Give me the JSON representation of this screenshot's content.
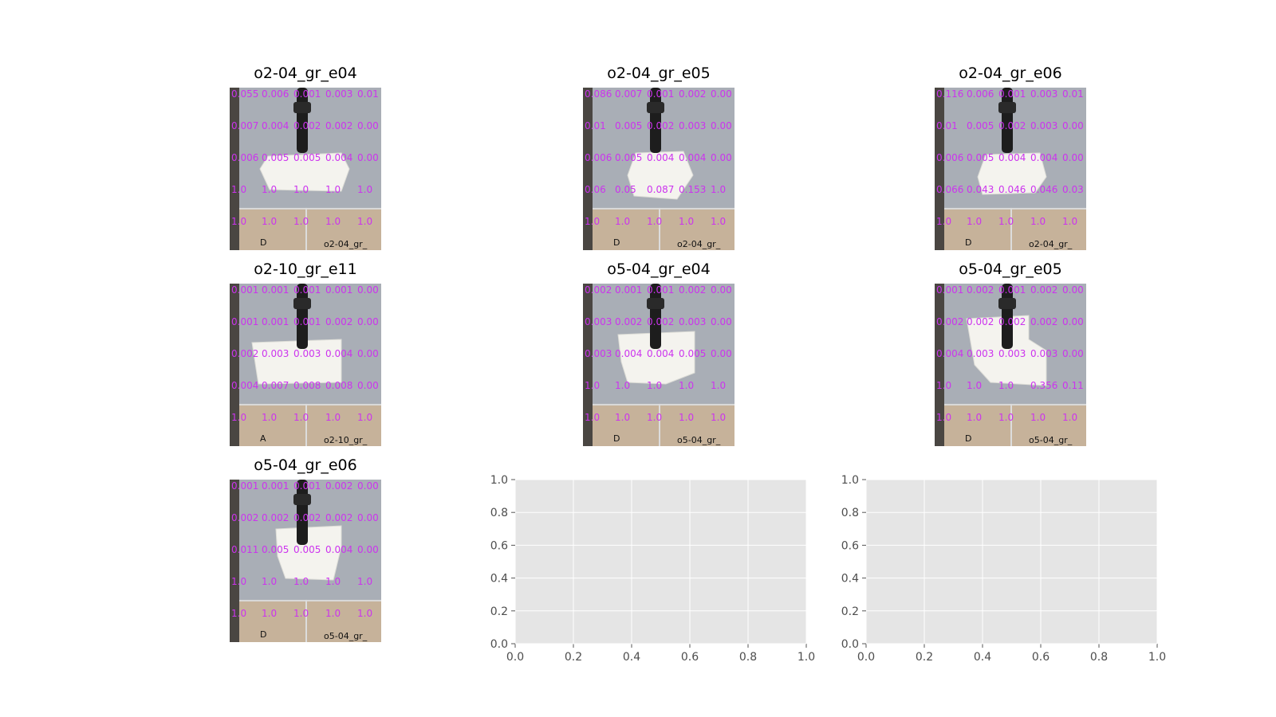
{
  "figure": {
    "panels": [
      {
        "title": "o2-04_gr_e04",
        "grid_rows": [
          [
            "0.055",
            "0.006",
            "0.001",
            "0.003",
            "0.01"
          ],
          [
            "0.007",
            "0.004",
            "0.002",
            "0.002",
            "0.00"
          ],
          [
            "0.006",
            "0.005",
            "0.005",
            "0.004",
            "0.00"
          ],
          [
            "1.0",
            "1.0",
            "1.0",
            "1.0",
            "1.0"
          ],
          [
            "1.0",
            "1.0",
            "1.0",
            "1.0",
            "1.0"
          ]
        ],
        "corner_letter": "D",
        "corner_label": "o2-04_gr_"
      },
      {
        "title": "o2-04_gr_e05",
        "grid_rows": [
          [
            "0.086",
            "0.007",
            "0.001",
            "0.002",
            "0.00"
          ],
          [
            "0.01",
            "0.005",
            "0.002",
            "0.003",
            "0.00"
          ],
          [
            "0.006",
            "0.005",
            "0.004",
            "0.004",
            "0.00"
          ],
          [
            "0.06",
            "0.05",
            "0.087",
            "0.153",
            "1.0"
          ],
          [
            "1.0",
            "1.0",
            "1.0",
            "1.0",
            "1.0"
          ]
        ],
        "corner_letter": "D",
        "corner_label": "o2-04_gr_"
      },
      {
        "title": "o2-04_gr_e06",
        "grid_rows": [
          [
            "0.116",
            "0.006",
            "0.001",
            "0.003",
            "0.01"
          ],
          [
            "0.01",
            "0.005",
            "0.002",
            "0.003",
            "0.00"
          ],
          [
            "0.006",
            "0.005",
            "0.004",
            "0.004",
            "0.00"
          ],
          [
            "0.066",
            "0.043",
            "0.046",
            "0.046",
            "0.03"
          ],
          [
            "1.0",
            "1.0",
            "1.0",
            "1.0",
            "1.0"
          ]
        ],
        "corner_letter": "D",
        "corner_label": "o2-04_gr_"
      },
      {
        "title": "o2-10_gr_e11",
        "grid_rows": [
          [
            "0.001",
            "0.001",
            "0.001",
            "0.001",
            "0.00"
          ],
          [
            "0.001",
            "0.001",
            "0.001",
            "0.002",
            "0.00"
          ],
          [
            "0.002",
            "0.003",
            "0.003",
            "0.004",
            "0.00"
          ],
          [
            "0.004",
            "0.007",
            "0.008",
            "0.008",
            "0.00"
          ],
          [
            "1.0",
            "1.0",
            "1.0",
            "1.0",
            "1.0"
          ]
        ],
        "corner_letter": "A",
        "corner_label": "o2-10_gr_"
      },
      {
        "title": "o5-04_gr_e04",
        "grid_rows": [
          [
            "0.002",
            "0.001",
            "0.001",
            "0.002",
            "0.00"
          ],
          [
            "0.003",
            "0.002",
            "0.002",
            "0.003",
            "0.00"
          ],
          [
            "0.003",
            "0.004",
            "0.004",
            "0.005",
            "0.00"
          ],
          [
            "1.0",
            "1.0",
            "1.0",
            "1.0",
            "1.0"
          ],
          [
            "1.0",
            "1.0",
            "1.0",
            "1.0",
            "1.0"
          ]
        ],
        "corner_letter": "D",
        "corner_label": "o5-04_gr_"
      },
      {
        "title": "o5-04_gr_e05",
        "grid_rows": [
          [
            "0.001",
            "0.002",
            "0.001",
            "0.002",
            "0.00"
          ],
          [
            "0.002",
            "0.002",
            "0.002",
            "0.002",
            "0.00"
          ],
          [
            "0.004",
            "0.003",
            "0.003",
            "0.003",
            "0.00"
          ],
          [
            "1.0",
            "1.0",
            "1.0",
            "0.356",
            "0.11"
          ],
          [
            "1.0",
            "1.0",
            "1.0",
            "1.0",
            "1.0"
          ]
        ],
        "corner_letter": "D",
        "corner_label": "o5-04_gr_"
      },
      {
        "title": "o5-04_gr_e06",
        "grid_rows": [
          [
            "0.001",
            "0.001",
            "0.001",
            "0.002",
            "0.00"
          ],
          [
            "0.002",
            "0.002",
            "0.002",
            "0.002",
            "0.00"
          ],
          [
            "0.011",
            "0.005",
            "0.005",
            "0.004",
            "0.00"
          ],
          [
            "1.0",
            "1.0",
            "1.0",
            "1.0",
            "1.0"
          ],
          [
            "1.0",
            "1.0",
            "1.0",
            "1.0",
            "1.0"
          ]
        ],
        "corner_letter": "D",
        "corner_label": "o5-04_gr_"
      }
    ],
    "empty_axes": [
      {
        "xlim": [
          0.0,
          1.0
        ],
        "ylim": [
          0.0,
          1.0
        ],
        "xticks": [
          "0.0",
          "0.2",
          "0.4",
          "0.6",
          "0.8",
          "1.0"
        ],
        "yticks": [
          "0.0",
          "0.2",
          "0.4",
          "0.6",
          "0.8",
          "1.0"
        ]
      },
      {
        "xlim": [
          0.0,
          1.0
        ],
        "ylim": [
          0.0,
          1.0
        ],
        "xticks": [
          "0.0",
          "0.2",
          "0.4",
          "0.6",
          "0.8",
          "1.0"
        ],
        "yticks": [
          "0.0",
          "0.2",
          "0.4",
          "0.6",
          "0.8",
          "1.0"
        ]
      }
    ],
    "colors": {
      "overlay_text": "#cc33ee",
      "axes_background": "#e5e5e5",
      "grid": "#ffffff",
      "tick_text": "#4d4d4d"
    }
  },
  "chart_data": [
    {
      "type": "table",
      "title": "o2-04_gr_e04",
      "rows": [
        [
          "0.055",
          "0.006",
          "0.001",
          "0.003",
          "0.01"
        ],
        [
          "0.007",
          "0.004",
          "0.002",
          "0.002",
          "0.00"
        ],
        [
          "0.006",
          "0.005",
          "0.005",
          "0.004",
          "0.00"
        ],
        [
          "1.0",
          "1.0",
          "1.0",
          "1.0",
          "1.0"
        ],
        [
          "1.0",
          "1.0",
          "1.0",
          "1.0",
          "1.0"
        ]
      ]
    },
    {
      "type": "table",
      "title": "o2-04_gr_e05",
      "rows": [
        [
          "0.086",
          "0.007",
          "0.001",
          "0.002",
          "0.00"
        ],
        [
          "0.01",
          "0.005",
          "0.002",
          "0.003",
          "0.00"
        ],
        [
          "0.006",
          "0.005",
          "0.004",
          "0.004",
          "0.00"
        ],
        [
          "0.06",
          "0.05",
          "0.087",
          "0.153",
          "1.0"
        ],
        [
          "1.0",
          "1.0",
          "1.0",
          "1.0",
          "1.0"
        ]
      ]
    },
    {
      "type": "table",
      "title": "o2-04_gr_e06",
      "rows": [
        [
          "0.116",
          "0.006",
          "0.001",
          "0.003",
          "0.01"
        ],
        [
          "0.01",
          "0.005",
          "0.002",
          "0.003",
          "0.00"
        ],
        [
          "0.006",
          "0.005",
          "0.004",
          "0.004",
          "0.00"
        ],
        [
          "0.066",
          "0.043",
          "0.046",
          "0.046",
          "0.03"
        ],
        [
          "1.0",
          "1.0",
          "1.0",
          "1.0",
          "1.0"
        ]
      ]
    },
    {
      "type": "table",
      "title": "o2-10_gr_e11",
      "rows": [
        [
          "0.001",
          "0.001",
          "0.001",
          "0.001",
          "0.00"
        ],
        [
          "0.001",
          "0.001",
          "0.001",
          "0.002",
          "0.00"
        ],
        [
          "0.002",
          "0.003",
          "0.003",
          "0.004",
          "0.00"
        ],
        [
          "0.004",
          "0.007",
          "0.008",
          "0.008",
          "0.00"
        ],
        [
          "1.0",
          "1.0",
          "1.0",
          "1.0",
          "1.0"
        ]
      ]
    },
    {
      "type": "table",
      "title": "o5-04_gr_e04",
      "rows": [
        [
          "0.002",
          "0.001",
          "0.001",
          "0.002",
          "0.00"
        ],
        [
          "0.003",
          "0.002",
          "0.002",
          "0.003",
          "0.00"
        ],
        [
          "0.003",
          "0.004",
          "0.004",
          "0.005",
          "0.00"
        ],
        [
          "1.0",
          "1.0",
          "1.0",
          "1.0",
          "1.0"
        ],
        [
          "1.0",
          "1.0",
          "1.0",
          "1.0",
          "1.0"
        ]
      ]
    },
    {
      "type": "table",
      "title": "o5-04_gr_e05",
      "rows": [
        [
          "0.001",
          "0.002",
          "0.001",
          "0.002",
          "0.00"
        ],
        [
          "0.002",
          "0.002",
          "0.002",
          "0.002",
          "0.00"
        ],
        [
          "0.004",
          "0.003",
          "0.003",
          "0.003",
          "0.00"
        ],
        [
          "1.0",
          "1.0",
          "1.0",
          "0.356",
          "0.11"
        ],
        [
          "1.0",
          "1.0",
          "1.0",
          "1.0",
          "1.0"
        ]
      ]
    },
    {
      "type": "table",
      "title": "o5-04_gr_e06",
      "rows": [
        [
          "0.001",
          "0.001",
          "0.001",
          "0.002",
          "0.00"
        ],
        [
          "0.002",
          "0.002",
          "0.002",
          "0.002",
          "0.00"
        ],
        [
          "0.011",
          "0.005",
          "0.005",
          "0.004",
          "0.00"
        ],
        [
          "1.0",
          "1.0",
          "1.0",
          "1.0",
          "1.0"
        ],
        [
          "1.0",
          "1.0",
          "1.0",
          "1.0",
          "1.0"
        ]
      ]
    },
    {
      "type": "scatter",
      "title": "",
      "xlim": [
        0.0,
        1.0
      ],
      "ylim": [
        0.0,
        1.0
      ],
      "grid": true,
      "series": []
    },
    {
      "type": "scatter",
      "title": "",
      "xlim": [
        0.0,
        1.0
      ],
      "ylim": [
        0.0,
        1.0
      ],
      "grid": true,
      "series": []
    }
  ]
}
